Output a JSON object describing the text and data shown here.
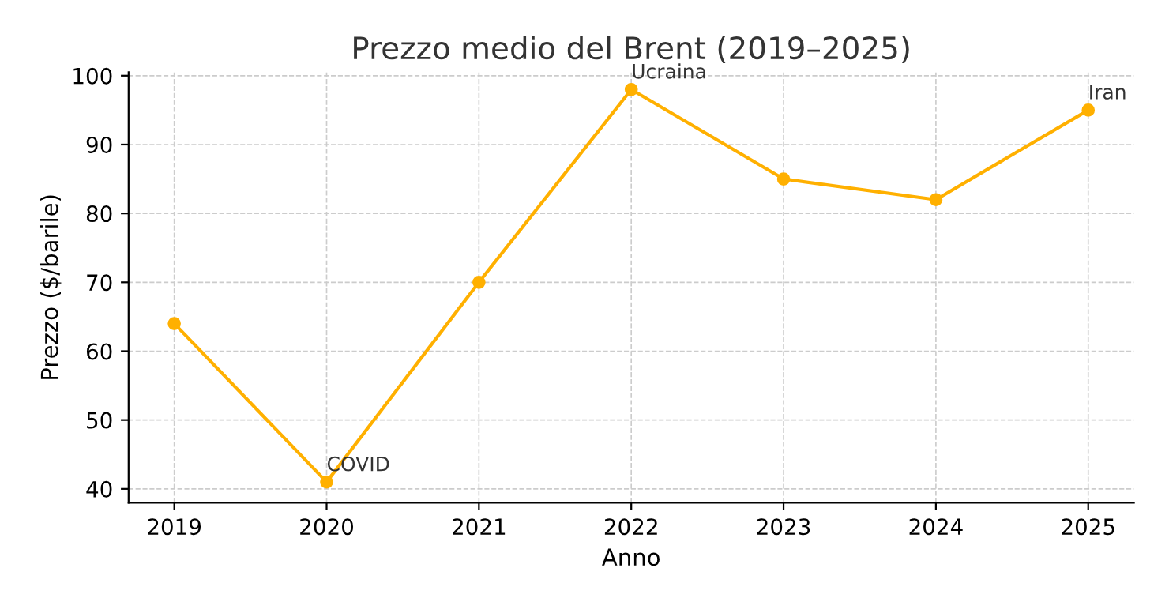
{
  "chart_data": {
    "type": "line",
    "title": "Prezzo medio del Brent (2019–2025)",
    "xlabel": "Anno",
    "ylabel": "Prezzo ($/barile)",
    "categories": [
      "2019",
      "2020",
      "2021",
      "2022",
      "2023",
      "2024",
      "2025"
    ],
    "series": [
      {
        "color": "#ffb000",
        "values": [
          64,
          41,
          70,
          98,
          85,
          82,
          95
        ]
      }
    ],
    "ylim": [
      38,
      100.5
    ],
    "yticks": [
      40,
      50,
      60,
      70,
      80,
      90,
      100
    ],
    "grid": true,
    "marker": "circle",
    "line_style": "solid",
    "annotations": [
      {
        "text": "COVID",
        "x": "2020",
        "y": 41
      },
      {
        "text": "Ucraina",
        "x": "2022",
        "y": 98
      },
      {
        "text": "Iran",
        "x": "2025",
        "y": 95
      }
    ]
  }
}
